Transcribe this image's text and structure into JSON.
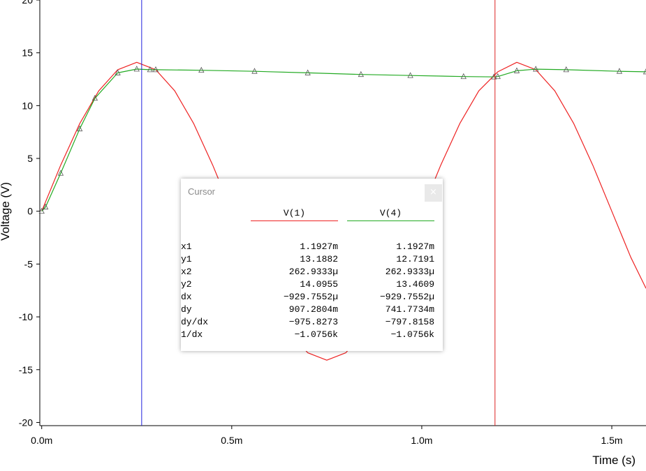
{
  "chart_data": {
    "type": "line",
    "xlabel": "Time (s)",
    "ylabel": "Voltage (V)",
    "xlim": [
      -5e-06,
      0.00159
    ],
    "ylim": [
      -20.3,
      20
    ],
    "x_ticks": [
      {
        "value": 0.0,
        "label": "0.0m"
      },
      {
        "value": 0.0005,
        "label": "0.5m"
      },
      {
        "value": 0.001,
        "label": "1.0m"
      },
      {
        "value": 0.0015,
        "label": "1.5m"
      }
    ],
    "y_ticks": [
      {
        "value": 20,
        "label": "20"
      },
      {
        "value": 15,
        "label": "15"
      },
      {
        "value": 10,
        "label": "10"
      },
      {
        "value": 5,
        "label": "5"
      },
      {
        "value": 0,
        "label": "0"
      },
      {
        "value": -5,
        "label": "-5"
      },
      {
        "value": -10,
        "label": "-10"
      },
      {
        "value": -15,
        "label": "-15"
      },
      {
        "value": -20,
        "label": "-20"
      }
    ],
    "series": [
      {
        "name": "V(1)",
        "color": "#ee2222",
        "marker": "none",
        "x": [
          0.0,
          5e-05,
          0.0001,
          0.00015,
          0.0002,
          0.00025,
          0.0003,
          0.00035,
          0.0004,
          0.00045,
          0.0005,
          0.00055,
          0.0006,
          0.00065,
          0.0007,
          0.00075,
          0.0008,
          0.00085,
          0.0009,
          0.00095,
          0.001,
          0.00105,
          0.0011,
          0.00115,
          0.0012,
          0.00125,
          0.0013,
          0.00135,
          0.0014,
          0.00145,
          0.0015,
          0.00155,
          0.00159
        ],
        "y": [
          0.0,
          4.36,
          8.29,
          11.4,
          13.4,
          14.1,
          13.4,
          11.4,
          8.29,
          4.36,
          0.0,
          -4.36,
          -8.29,
          -11.4,
          -13.4,
          -14.1,
          -13.4,
          -11.4,
          -8.29,
          -4.36,
          0.0,
          4.36,
          8.29,
          11.4,
          13.2,
          14.1,
          13.4,
          11.4,
          8.29,
          4.36,
          0.0,
          -4.36,
          -7.3
        ]
      },
      {
        "name": "V(4)",
        "color": "#22aa22",
        "marker": "triangle",
        "x": [
          0.0,
          1e-05,
          5e-05,
          0.0001,
          0.00014,
          0.0002,
          0.00025,
          0.000285,
          0.0003,
          0.00042,
          0.00056,
          0.0007,
          0.00084,
          0.00097,
          0.00111,
          0.00119,
          0.0012,
          0.00125,
          0.0013,
          0.00138,
          0.00152,
          0.00159
        ],
        "y": [
          0.0,
          0.4,
          3.6,
          7.8,
          10.7,
          13.1,
          13.46,
          13.4,
          13.4,
          13.35,
          13.25,
          13.1,
          12.95,
          12.85,
          12.75,
          12.72,
          12.75,
          13.3,
          13.45,
          13.4,
          13.25,
          13.2
        ]
      }
    ],
    "cursors": [
      {
        "name": "cursor-1",
        "x": 0.000263,
        "color": "#2222dd"
      },
      {
        "name": "cursor-2",
        "x": 0.0011927,
        "color": "#dd2222"
      }
    ]
  },
  "cursor_panel": {
    "title": "Cursor",
    "close_glyph": "×",
    "columns": [
      {
        "label": "V(1)",
        "color": "#ee2222"
      },
      {
        "label": "V(4)",
        "color": "#22aa22"
      }
    ],
    "rows": [
      {
        "label": "x1",
        "v1": "1.1927m",
        "v2": "1.1927m"
      },
      {
        "label": "y1",
        "v1": "13.1882",
        "v2": "12.7191"
      },
      {
        "label": "x2",
        "v1": "262.9333µ",
        "v2": "262.9333µ"
      },
      {
        "label": "y2",
        "v1": "14.0955",
        "v2": "13.4609"
      },
      {
        "label": "dx",
        "v1": "−929.7552µ",
        "v2": "−929.7552µ"
      },
      {
        "label": "dy",
        "v1": "907.2804m",
        "v2": "741.7734m"
      },
      {
        "label": "dy/dx",
        "v1": "−975.8273",
        "v2": "−797.8158"
      },
      {
        "label": "1/dx",
        "v1": "−1.0756k",
        "v2": "−1.0756k"
      }
    ]
  }
}
